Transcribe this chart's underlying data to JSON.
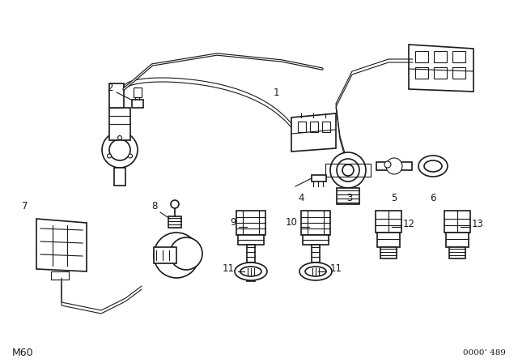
{
  "bg_color": "#ffffff",
  "line_color": "#1a1a1a",
  "fig_width": 6.4,
  "fig_height": 4.48,
  "dpi": 100,
  "bottom_left_text": "M60",
  "bottom_right_text": "0000’ 489"
}
